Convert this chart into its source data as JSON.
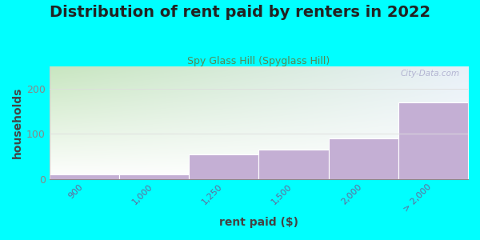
{
  "title": "Distribution of rent paid by renters in 2022",
  "subtitle": "Spy Glass Hill (Spyglass Hill)",
  "xlabel": "rent paid ($)",
  "ylabel": "households",
  "categories": [
    "900",
    "1,000",
    "1,250",
    "1,500",
    "2,000",
    "> 2,000"
  ],
  "values": [
    10,
    10,
    55,
    65,
    90,
    170
  ],
  "bar_color": "#c4afd4",
  "bar_edge_color": "#ffffff",
  "bg_color": "#00ffff",
  "plot_bg_color_topleft": "#c8e6c0",
  "plot_bg_color_topright": "#e8f0f8",
  "plot_bg_color_bottomright": "#ffffff",
  "ylim": [
    0,
    250
  ],
  "yticks": [
    0,
    100,
    200
  ],
  "watermark": "City-Data.com",
  "title_fontsize": 14,
  "subtitle_fontsize": 9,
  "axis_label_fontsize": 10
}
